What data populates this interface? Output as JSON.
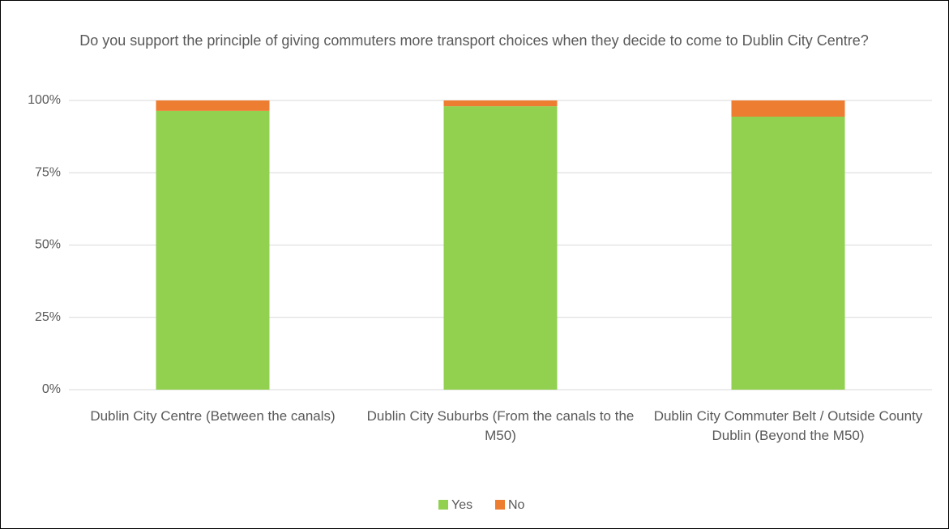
{
  "chart_data": {
    "type": "stacked_bar",
    "title": "Do you support the principle of giving commuters more transport choices when they decide to come to Dublin City Centre?",
    "categories": [
      "Dublin City Centre (Between the canals)",
      "Dublin City Suburbs (From the canals to the M50)",
      "Dublin City Commuter Belt / Outside County Dublin (Beyond the M50)"
    ],
    "series": [
      {
        "name": "Yes",
        "color": "#92d050",
        "values": [
          96.4,
          98.0,
          94.4
        ]
      },
      {
        "name": "No",
        "color": "#ed7d31",
        "values": [
          3.6,
          2.0,
          5.6
        ]
      }
    ],
    "ylim": [
      0,
      100
    ],
    "yticks": [
      {
        "value": 0,
        "label": "0%"
      },
      {
        "value": 25,
        "label": "25%"
      },
      {
        "value": 50,
        "label": "50%"
      },
      {
        "value": 75,
        "label": "75%"
      },
      {
        "value": 100,
        "label": "100%"
      }
    ],
    "grid": true,
    "legend": "bottom"
  }
}
